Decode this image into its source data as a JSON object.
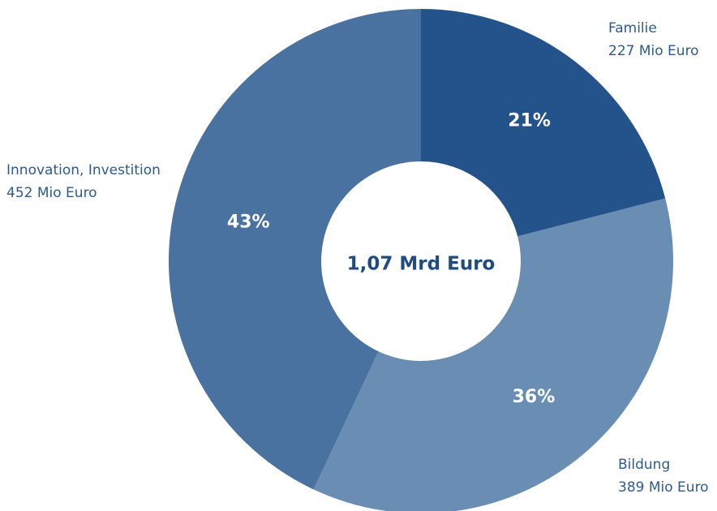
{
  "chart_data": {
    "type": "donut",
    "title": "1,07 Mrd Euro",
    "categories": [
      "Familie",
      "Bildung",
      "Innovation, Investition"
    ],
    "annotations": [
      "227 Mio Euro",
      "389 Mio Euro",
      "452 Mio Euro"
    ],
    "values": [
      21,
      36,
      43
    ],
    "value_labels": [
      "21%",
      "36%",
      "43%"
    ],
    "colors": [
      "#23538a",
      "#6a8db3",
      "#4a72a0"
    ]
  }
}
